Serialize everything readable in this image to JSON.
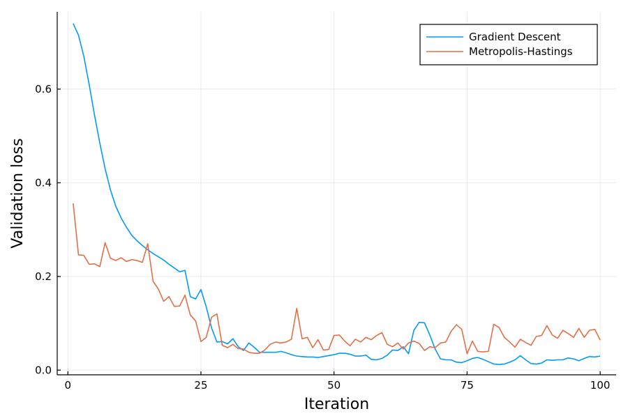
{
  "chart_data": {
    "type": "line",
    "title": "",
    "xlabel": "Iteration",
    "ylabel": "Validation loss",
    "xlim": [
      -2,
      103
    ],
    "ylim": [
      -0.01,
      0.765
    ],
    "xticks": [
      0,
      25,
      50,
      75,
      100
    ],
    "yticks": [
      0.0,
      0.2,
      0.4,
      0.6
    ],
    "xtick_labels": [
      "0",
      "25",
      "50",
      "75",
      "100"
    ],
    "ytick_labels": [
      "0.0",
      "0.2",
      "0.4",
      "0.6"
    ],
    "grid": true,
    "legend_position": "top-right",
    "x": [
      1,
      2,
      3,
      4,
      5,
      6,
      7,
      8,
      9,
      10,
      11,
      12,
      13,
      14,
      15,
      16,
      17,
      18,
      19,
      20,
      21,
      22,
      23,
      24,
      25,
      26,
      27,
      28,
      29,
      30,
      31,
      32,
      33,
      34,
      35,
      36,
      37,
      38,
      39,
      40,
      41,
      42,
      43,
      44,
      45,
      46,
      47,
      48,
      49,
      50,
      51,
      52,
      53,
      54,
      55,
      56,
      57,
      58,
      59,
      60,
      61,
      62,
      63,
      64,
      65,
      66,
      67,
      68,
      69,
      70,
      71,
      72,
      73,
      74,
      75,
      76,
      77,
      78,
      79,
      80,
      81,
      82,
      83,
      84,
      85,
      86,
      87,
      88,
      89,
      90,
      91,
      92,
      93,
      94,
      95,
      96,
      97,
      98,
      99,
      100
    ],
    "series": [
      {
        "name": "Gradient Descent",
        "color": "#009AFA",
        "values": [
          0.74,
          0.715,
          0.67,
          0.61,
          0.545,
          0.485,
          0.43,
          0.385,
          0.35,
          0.325,
          0.305,
          0.288,
          0.276,
          0.266,
          0.257,
          0.249,
          0.242,
          0.235,
          0.226,
          0.218,
          0.21,
          0.213,
          0.157,
          0.152,
          0.172,
          0.135,
          0.09,
          0.06,
          0.061,
          0.056,
          0.067,
          0.05,
          0.042,
          0.058,
          0.049,
          0.038,
          0.038,
          0.038,
          0.038,
          0.04,
          0.037,
          0.033,
          0.03,
          0.029,
          0.028,
          0.028,
          0.027,
          0.029,
          0.031,
          0.033,
          0.036,
          0.036,
          0.034,
          0.03,
          0.03,
          0.032,
          0.023,
          0.022,
          0.025,
          0.032,
          0.043,
          0.042,
          0.05,
          0.035,
          0.085,
          0.102,
          0.101,
          0.075,
          0.045,
          0.024,
          0.022,
          0.022,
          0.017,
          0.016,
          0.02,
          0.025,
          0.027,
          0.023,
          0.018,
          0.013,
          0.012,
          0.013,
          0.017,
          0.022,
          0.031,
          0.022,
          0.014,
          0.013,
          0.015,
          0.022,
          0.021,
          0.022,
          0.022,
          0.026,
          0.024,
          0.02,
          0.025,
          0.029,
          0.028,
          0.03
        ]
      },
      {
        "name": "Metropolis-Hastings",
        "color": "#E26F46",
        "values": [
          0.356,
          0.246,
          0.245,
          0.226,
          0.227,
          0.221,
          0.272,
          0.239,
          0.234,
          0.24,
          0.232,
          0.236,
          0.234,
          0.23,
          0.27,
          0.19,
          0.173,
          0.147,
          0.157,
          0.136,
          0.137,
          0.16,
          0.118,
          0.105,
          0.061,
          0.07,
          0.113,
          0.12,
          0.053,
          0.048,
          0.055,
          0.046,
          0.045,
          0.038,
          0.036,
          0.036,
          0.043,
          0.055,
          0.06,
          0.058,
          0.06,
          0.066,
          0.132,
          0.067,
          0.07,
          0.048,
          0.065,
          0.043,
          0.044,
          0.074,
          0.075,
          0.062,
          0.052,
          0.066,
          0.06,
          0.07,
          0.065,
          0.074,
          0.08,
          0.055,
          0.05,
          0.058,
          0.045,
          0.058,
          0.062,
          0.057,
          0.042,
          0.05,
          0.048,
          0.058,
          0.06,
          0.083,
          0.097,
          0.087,
          0.035,
          0.062,
          0.04,
          0.039,
          0.04,
          0.098,
          0.091,
          0.07,
          0.06,
          0.049,
          0.066,
          0.059,
          0.053,
          0.072,
          0.074,
          0.095,
          0.075,
          0.068,
          0.085,
          0.078,
          0.07,
          0.089,
          0.07,
          0.085,
          0.087,
          0.064
        ]
      }
    ]
  }
}
